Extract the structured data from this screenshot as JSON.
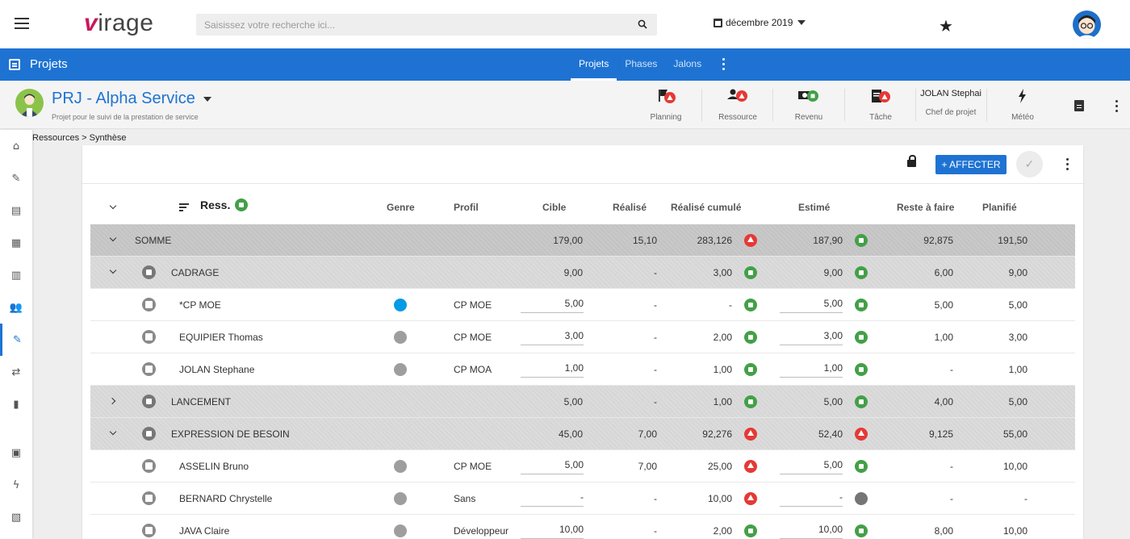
{
  "topbar": {
    "logo": "virage",
    "search_placeholder": "Saisissez votre recherche ici...",
    "date": "décembre 2019",
    "icons": [
      "menu-icon",
      "search-icon",
      "calendar-icon",
      "star-icon",
      "avatar"
    ]
  },
  "appbar": {
    "title": "Projets",
    "tabs": [
      {
        "label": "Projets",
        "active": true
      },
      {
        "label": "Phases",
        "active": false
      },
      {
        "label": "Jalons",
        "active": false
      }
    ]
  },
  "project": {
    "name": "PRJ - Alpha Service",
    "description": "Projet pour le suivi de la prestation de service",
    "kpis": [
      {
        "label": "Planning",
        "status": "red",
        "icon": "flag-icon"
      },
      {
        "label": "Ressource",
        "status": "red",
        "icon": "person-icon"
      },
      {
        "label": "Revenu",
        "status": "green",
        "icon": "money-icon"
      },
      {
        "label": "Tâche",
        "status": "red",
        "icon": "clipboard-icon"
      },
      {
        "label": "Chef de projet",
        "value": "JOLAN Stephai"
      },
      {
        "label": "Météo",
        "icon": "lightning-icon"
      }
    ]
  },
  "breadcrumb": "Ressources > Synthèse",
  "toolbar": {
    "affecter_label": "+ AFFECTER",
    "check_label": "✓"
  },
  "table": {
    "headers": {
      "ress": "Ress.",
      "genre": "Genre",
      "profil": "Profil",
      "cible": "Cible",
      "realise": "Réalisé",
      "realise_cumule": "Réalisé cumulé",
      "estime": "Estimé",
      "reste": "Reste à faire",
      "planifie": "Planifié"
    },
    "rows": [
      {
        "kind": "sum",
        "expand": "down",
        "label": "SOMME",
        "cible": "179,00",
        "realise": "15,10",
        "cumule": "283,126",
        "cumule_status": "red",
        "estime": "187,90",
        "estime_status": "green",
        "reste": "92,875",
        "planifie": "191,50"
      },
      {
        "kind": "group",
        "expand": "down",
        "label": "CADRAGE",
        "cible": "9,00",
        "realise": "-",
        "cumule": "3,00",
        "cumule_status": "green",
        "estime": "9,00",
        "estime_status": "green",
        "reste": "6,00",
        "planifie": "9,00"
      },
      {
        "kind": "person",
        "label": "*CP MOE",
        "genre_color": "#039be5",
        "profil": "CP MOE",
        "cible": "5,00",
        "realise": "-",
        "cumule": "-",
        "cumule_status": "green",
        "estime": "5,00",
        "estime_status": "green",
        "reste": "5,00",
        "planifie": "5,00"
      },
      {
        "kind": "person",
        "label": "EQUIPIER Thomas",
        "genre_color": "#9e9e9e",
        "profil": "CP MOE",
        "cible": "3,00",
        "realise": "-",
        "cumule": "2,00",
        "cumule_status": "green",
        "estime": "3,00",
        "estime_status": "green",
        "reste": "1,00",
        "planifie": "3,00"
      },
      {
        "kind": "person",
        "label": "JOLAN Stephane",
        "genre_color": "#9e9e9e",
        "profil": "CP MOA",
        "cible": "1,00",
        "realise": "-",
        "cumule": "1,00",
        "cumule_status": "green",
        "estime": "1,00",
        "estime_status": "green",
        "reste": "-",
        "planifie": "1,00"
      },
      {
        "kind": "group",
        "expand": "right",
        "label": "LANCEMENT",
        "cible": "5,00",
        "realise": "-",
        "cumule": "1,00",
        "cumule_status": "green",
        "estime": "5,00",
        "estime_status": "green",
        "reste": "4,00",
        "planifie": "5,00"
      },
      {
        "kind": "group",
        "expand": "down",
        "label": "EXPRESSION DE BESOIN",
        "cible": "45,00",
        "realise": "7,00",
        "cumule": "92,276",
        "cumule_status": "red",
        "estime": "52,40",
        "estime_status": "red",
        "reste": "9,125",
        "planifie": "55,00"
      },
      {
        "kind": "person",
        "label": "ASSELIN Bruno",
        "genre_color": "#9e9e9e",
        "profil": "CP MOE",
        "cible": "5,00",
        "realise": "7,00",
        "cumule": "25,00",
        "cumule_status": "red",
        "estime": "5,00",
        "estime_status": "green",
        "reste": "-",
        "planifie": "10,00"
      },
      {
        "kind": "person",
        "label": "BERNARD Chrystelle",
        "genre_color": "#9e9e9e",
        "profil": "Sans",
        "cible": "-",
        "realise": "-",
        "cumule": "10,00",
        "cumule_status": "red",
        "estime": "-",
        "estime_status": "grey",
        "reste": "-",
        "planifie": "-"
      },
      {
        "kind": "person",
        "label": "JAVA Claire",
        "genre_color": "#9e9e9e",
        "profil": "Développeur",
        "cible": "10,00",
        "realise": "-",
        "cumule": "2,00",
        "cumule_status": "green",
        "estime": "10,00",
        "estime_status": "green",
        "reste": "8,00",
        "planifie": "10,00"
      }
    ]
  },
  "sidebar": {
    "items": [
      {
        "icon": "home-icon",
        "glyph": "⌂"
      },
      {
        "icon": "edit-icon",
        "glyph": "✎"
      },
      {
        "icon": "list-icon",
        "glyph": "▤"
      },
      {
        "icon": "calendar-icon",
        "glyph": "▦"
      },
      {
        "icon": "building-icon",
        "glyph": "▥"
      },
      {
        "icon": "people-icon",
        "glyph": "👥"
      },
      {
        "icon": "pencil-icon",
        "glyph": "✎",
        "active": true
      },
      {
        "icon": "shuffle-icon",
        "glyph": "⇄"
      },
      {
        "icon": "bar-chart-icon",
        "glyph": "▮"
      },
      {
        "icon": "money-icon",
        "glyph": "▣"
      },
      {
        "icon": "lightning-icon",
        "glyph": "ϟ"
      },
      {
        "icon": "clipboard-icon",
        "glyph": "▧"
      }
    ]
  }
}
